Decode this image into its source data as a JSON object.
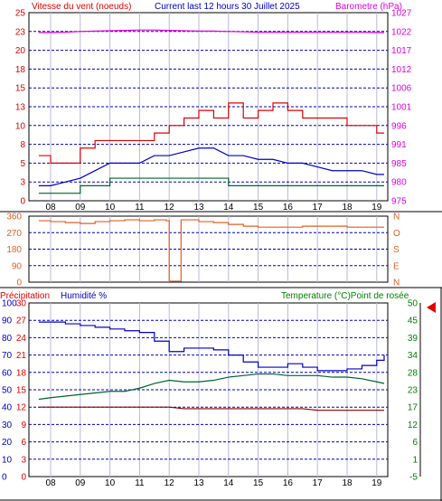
{
  "header": {
    "wind_title": "Vitesse du vent (noeuds)",
    "period_title": "Current last 12 hours 30 Juillet 2025",
    "baro_title": "Barometre (hPa)"
  },
  "bottom_header": {
    "precip_label": "Précipitation",
    "humidity_label": "Humidité %",
    "temp_label": "Temperature (°C)Point de rosée"
  },
  "colors": {
    "wind_speed": "#e00000",
    "wind_avg": "#0000c8",
    "wind_low": "#006428",
    "barometer": "#e000e0",
    "direction": "#e06020",
    "humidity": "#0000c8",
    "temperature": "#006428",
    "dewpoint": "#8b0000",
    "grid": "#0000c0",
    "axis_red": "#e00000",
    "axis_magenta": "#e000e0",
    "axis_blue": "#0000c8",
    "axis_green": "#008000",
    "axis_orange": "#e06020",
    "marker": "#e00000"
  },
  "x_ticks": [
    "08",
    "09",
    "10",
    "11",
    "12",
    "13",
    "14",
    "15",
    "16",
    "17",
    "18",
    "19"
  ],
  "chart_data": [
    {
      "id": "wind",
      "type": "line",
      "title": "Vitesse du vent (noeuds)",
      "subtitle": "Current last 12 hours 30 Juillet 2025",
      "y_left": {
        "label": "Vitesse du vent (noeuds)",
        "ticks": [
          "0",
          "3",
          "5",
          "8",
          "10",
          "13",
          "15",
          "18",
          "20",
          "23",
          "25"
        ],
        "ylim": [
          0,
          25
        ]
      },
      "y_right": {
        "label": "Barometre (hPa)",
        "ticks": [
          "975",
          "980",
          "985",
          "991",
          "996",
          "1001",
          "1006",
          "1012",
          "1017",
          "1022",
          "1027"
        ],
        "ylim": [
          975,
          1027
        ]
      },
      "x": [
        7.6,
        8,
        8.5,
        9,
        9.5,
        10,
        10.5,
        11,
        11.5,
        12,
        12.5,
        13,
        13.5,
        14,
        14.5,
        15,
        15.5,
        16,
        16.5,
        17,
        17.5,
        18,
        18.5,
        19,
        19.25
      ],
      "series": [
        {
          "key": "gust",
          "values": [
            6,
            5,
            5,
            7,
            8,
            8,
            8,
            8,
            9,
            10,
            11,
            12,
            11,
            13,
            11,
            12,
            13,
            12,
            11,
            11,
            11,
            10,
            10,
            9,
            9
          ]
        },
        {
          "key": "avg",
          "values": [
            2,
            2,
            2.5,
            3,
            4,
            5,
            5,
            5,
            6,
            6,
            6.5,
            7,
            7,
            6,
            6,
            5.5,
            5.5,
            5,
            5,
            4.5,
            4,
            4,
            4,
            3.5,
            3.5
          ]
        },
        {
          "key": "low",
          "values": [
            1,
            1,
            1,
            2,
            2,
            3,
            3,
            3,
            3,
            3,
            3,
            3,
            3,
            2,
            2,
            2,
            2,
            2,
            2,
            2,
            2,
            2,
            2,
            2,
            2
          ]
        },
        {
          "key": "barometer",
          "axis": "right",
          "values": [
            1021.5,
            1021.5,
            1021.6,
            1021.8,
            1021.9,
            1022,
            1022.1,
            1022.2,
            1022.2,
            1022.1,
            1022,
            1021.9,
            1021.9,
            1021.8,
            1021.7,
            1021.6,
            1021.6,
            1021.6,
            1021.6,
            1021.6,
            1021.6,
            1021.6,
            1021.6,
            1021.5,
            1021.5
          ]
        }
      ],
      "grid": true
    },
    {
      "id": "direction",
      "type": "line",
      "y_left": {
        "ticks": [
          "0",
          "90",
          "180",
          "270",
          "360"
        ],
        "ylim": [
          0,
          360
        ]
      },
      "y_right": {
        "ticks": [
          "N",
          "E",
          "S",
          "O",
          "N"
        ]
      },
      "x": [
        7.6,
        8,
        8.5,
        9,
        9.5,
        10,
        10.5,
        11,
        11.5,
        11.9,
        12,
        12.2,
        12.4,
        12.5,
        13,
        13.5,
        14,
        14.5,
        15,
        15.5,
        16,
        16.5,
        17,
        17.5,
        18,
        18.5,
        19,
        19.25
      ],
      "series": [
        {
          "key": "direction",
          "values": [
            335,
            330,
            325,
            320,
            330,
            335,
            340,
            335,
            340,
            335,
            5,
            5,
            340,
            340,
            330,
            325,
            315,
            305,
            300,
            300,
            300,
            305,
            305,
            305,
            300,
            300,
            300,
            300
          ]
        }
      ],
      "grid": true
    },
    {
      "id": "temp_hum",
      "type": "line",
      "y_left_precip": {
        "label": "Précipitation",
        "ticks": [
          "0",
          "3",
          "6",
          "9",
          "12",
          "15",
          "18",
          "21",
          "24",
          "27",
          "30"
        ],
        "ylim": [
          0,
          30
        ]
      },
      "y_left_hum": {
        "label": "Humidité %",
        "ticks": [
          "0",
          "10",
          "20",
          "30",
          "40",
          "50",
          "60",
          "70",
          "80",
          "90",
          "100"
        ],
        "ylim": [
          0,
          100
        ]
      },
      "y_right": {
        "label": "Temperature (°C)Point de rosée",
        "ticks": [
          "-5",
          "1",
          "6",
          "12",
          "17",
          "23",
          "28",
          "34",
          "39",
          "45",
          "50"
        ],
        "ylim": [
          -5,
          50
        ]
      },
      "x": [
        7.6,
        8,
        8.5,
        9,
        9.5,
        10,
        10.5,
        11,
        11.5,
        12,
        12.5,
        13,
        13.5,
        14,
        14.5,
        15,
        15.5,
        16,
        16.5,
        17,
        17.5,
        18,
        18.5,
        19,
        19.25
      ],
      "series": [
        {
          "key": "humidity",
          "axis": "hum",
          "values": [
            89,
            89,
            88,
            87,
            86,
            85,
            84,
            83,
            78,
            72,
            74,
            74,
            73,
            70,
            66,
            63,
            63,
            65,
            63,
            61,
            61,
            62,
            64,
            67,
            70
          ]
        },
        {
          "key": "temperature",
          "axis": "right",
          "values": [
            19.5,
            20,
            20.5,
            21,
            21.5,
            22,
            22,
            23,
            24.5,
            25.5,
            25,
            25,
            25.5,
            26.5,
            27,
            27.5,
            27.5,
            27,
            27,
            27,
            26.5,
            26.5,
            26,
            25,
            24.5
          ]
        },
        {
          "key": "dewpoint",
          "axis": "right",
          "values": [
            17,
            17,
            17,
            17,
            17,
            17,
            17,
            17,
            17,
            17,
            16.5,
            16.5,
            16.5,
            16.5,
            16.5,
            16.5,
            16.5,
            16.5,
            16.5,
            16,
            16,
            16,
            16,
            16,
            16
          ]
        }
      ],
      "grid": true
    }
  ]
}
